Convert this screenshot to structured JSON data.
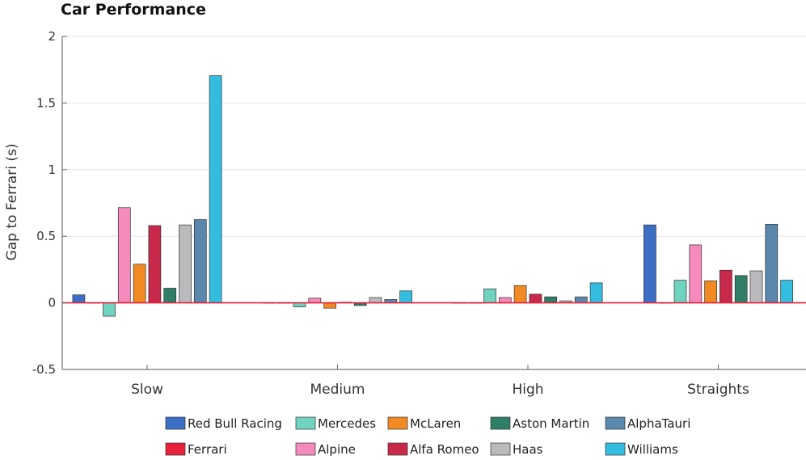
{
  "chart_data": {
    "type": "bar",
    "title": "Car Performance",
    "xlabel": "",
    "ylabel": "Gap to Ferrari (s)",
    "categories": [
      "Slow",
      "Medium",
      "High",
      "Straights"
    ],
    "ylim": [
      -0.5,
      2
    ],
    "yticks": [
      -0.5,
      0,
      0.5,
      1,
      1.5,
      2
    ],
    "ytick_labels": [
      "-0.5",
      "0",
      "0.5",
      "1",
      "1.5",
      "2"
    ],
    "grid": true,
    "legend_position": "bottom",
    "series": [
      {
        "name": "Red Bull Racing",
        "color": "#3a6fc4",
        "values": [
          0.06,
          0.0,
          0.0,
          0.585
        ]
      },
      {
        "name": "Ferrari",
        "color": "#e8203a",
        "values": [
          0.0,
          0.0,
          0.0,
          0.0
        ]
      },
      {
        "name": "Mercedes",
        "color": "#6fd3c0",
        "values": [
          -0.1,
          -0.03,
          0.105,
          0.17
        ]
      },
      {
        "name": "Alpine",
        "color": "#f58bbd",
        "values": [
          0.715,
          0.035,
          0.04,
          0.435
        ]
      },
      {
        "name": "McLaren",
        "color": "#f28a24",
        "values": [
          0.29,
          -0.04,
          0.13,
          0.165
        ]
      },
      {
        "name": "Alfa Romeo",
        "color": "#c8284a",
        "values": [
          0.58,
          0.005,
          0.065,
          0.245
        ]
      },
      {
        "name": "Aston Martin",
        "color": "#2f7f68",
        "values": [
          0.11,
          -0.02,
          0.045,
          0.205
        ]
      },
      {
        "name": "Haas",
        "color": "#b9babc",
        "values": [
          0.585,
          0.04,
          0.015,
          0.24
        ]
      },
      {
        "name": "AlphaTauri",
        "color": "#5a88ac",
        "values": [
          0.625,
          0.025,
          0.045,
          0.59
        ]
      },
      {
        "name": "Williams",
        "color": "#33bde0",
        "values": [
          1.705,
          0.09,
          0.15,
          0.17
        ]
      }
    ]
  }
}
